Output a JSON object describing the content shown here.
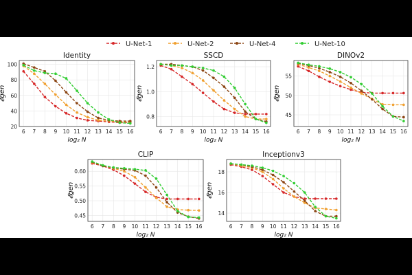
{
  "legend": [
    {
      "name": "U-Net-1",
      "color": "#d62728"
    },
    {
      "name": "U-Net-2",
      "color": "#f0a030"
    },
    {
      "name": "U-Net-4",
      "color": "#8b4513"
    },
    {
      "name": "U-Net-10",
      "color": "#32cd32"
    }
  ],
  "chart_data": [
    {
      "type": "line",
      "title": "Identity",
      "xlabel": "log₂ N",
      "ylabel": "𝓔gen",
      "x": [
        6,
        7,
        8,
        9,
        10,
        11,
        12,
        13,
        14,
        15,
        16
      ],
      "xlim": [
        5.6,
        16.4
      ],
      "ylim": [
        20,
        105
      ],
      "yticks": [
        "20",
        "40",
        "60",
        "80",
        "100"
      ],
      "ytick_values": [
        20,
        40,
        60,
        80,
        100
      ],
      "series": [
        {
          "name": "U-Net-1",
          "color": "#d62728",
          "values": [
            91,
            75,
            58,
            46,
            37,
            31,
            28,
            27,
            26,
            25,
            25
          ]
        },
        {
          "name": "U-Net-2",
          "color": "#f0a030",
          "values": [
            98,
            88,
            75,
            61,
            48,
            38,
            32,
            28,
            27,
            26,
            26
          ]
        },
        {
          "name": "U-Net-4",
          "color": "#8b4513",
          "values": [
            101,
            96,
            91,
            79,
            64,
            50,
            39,
            31,
            28,
            27,
            27
          ]
        },
        {
          "name": "U-Net-10",
          "color": "#32cd32",
          "values": [
            99,
            92,
            89,
            88,
            82,
            66,
            50,
            38,
            29,
            25,
            24
          ]
        }
      ]
    },
    {
      "type": "line",
      "title": "SSCD",
      "xlabel": "log₂ N",
      "ylabel": "𝓔gen",
      "x": [
        6,
        7,
        8,
        9,
        10,
        11,
        12,
        13,
        14,
        15,
        16
      ],
      "xlim": [
        5.6,
        16.4
      ],
      "ylim": [
        0.72,
        1.25
      ],
      "yticks": [
        "0.8",
        "1.0",
        "1.2"
      ],
      "ytick_values": [
        0.8,
        1.0,
        1.2
      ],
      "series": [
        {
          "name": "U-Net-1",
          "color": "#d62728",
          "values": [
            1.21,
            1.18,
            1.12,
            1.06,
            0.99,
            0.92,
            0.86,
            0.83,
            0.82,
            0.82,
            0.82
          ]
        },
        {
          "name": "U-Net-2",
          "color": "#f0a030",
          "values": [
            1.22,
            1.21,
            1.19,
            1.15,
            1.09,
            1.01,
            0.93,
            0.86,
            0.8,
            0.78,
            0.78
          ]
        },
        {
          "name": "U-Net-4",
          "color": "#8b4513",
          "values": [
            1.22,
            1.22,
            1.21,
            1.2,
            1.17,
            1.11,
            1.04,
            0.95,
            0.84,
            0.78,
            0.76
          ]
        },
        {
          "name": "U-Net-10",
          "color": "#32cd32",
          "values": [
            1.22,
            1.21,
            1.21,
            1.2,
            1.19,
            1.17,
            1.12,
            1.03,
            0.9,
            0.78,
            0.75
          ]
        }
      ]
    },
    {
      "type": "line",
      "title": "DINOv2",
      "xlabel": "log₂ N",
      "ylabel": "𝓔gen",
      "x": [
        6,
        7,
        8,
        9,
        10,
        11,
        12,
        13,
        14,
        15,
        16
      ],
      "xlim": [
        5.6,
        16.4
      ],
      "ylim": [
        42,
        59
      ],
      "yticks": [
        "45",
        "50",
        "55"
      ],
      "ytick_values": [
        45,
        50,
        55
      ],
      "series": [
        {
          "name": "U-Net-1",
          "color": "#d62728",
          "values": [
            57.5,
            56.3,
            54.8,
            53.5,
            52.4,
            51.5,
            50.8,
            50.6,
            50.6,
            50.6,
            50.6
          ]
        },
        {
          "name": "U-Net-2",
          "color": "#f0a030",
          "values": [
            58.0,
            57.2,
            56.3,
            55.0,
            53.6,
            52.0,
            50.5,
            49.1,
            47.7,
            47.6,
            47.6
          ]
        },
        {
          "name": "U-Net-4",
          "color": "#8b4513",
          "values": [
            58.3,
            57.7,
            57.0,
            56.0,
            54.8,
            53.2,
            51.2,
            49.0,
            46.5,
            44.6,
            44.4
          ]
        },
        {
          "name": "U-Net-10",
          "color": "#32cd32",
          "values": [
            58.4,
            57.9,
            57.5,
            56.9,
            56.0,
            54.7,
            52.9,
            50.5,
            47.2,
            44.6,
            43.4
          ]
        }
      ]
    },
    {
      "type": "line",
      "title": "CLIP",
      "xlabel": "log₂ N",
      "ylabel": "𝓔gen",
      "x": [
        6,
        7,
        8,
        9,
        10,
        11,
        12,
        13,
        14,
        15,
        16
      ],
      "xlim": [
        5.6,
        16.4
      ],
      "ylim": [
        0.43,
        0.64
      ],
      "yticks": [
        "0.45",
        "0.50",
        "0.55",
        "0.60"
      ],
      "ytick_values": [
        0.45,
        0.5,
        0.55,
        0.6
      ],
      "series": [
        {
          "name": "U-Net-1",
          "color": "#d62728",
          "values": [
            0.627,
            0.618,
            0.605,
            0.585,
            0.558,
            0.53,
            0.512,
            0.506,
            0.506,
            0.506,
            0.506
          ]
        },
        {
          "name": "U-Net-2",
          "color": "#f0a030",
          "values": [
            0.63,
            0.62,
            0.61,
            0.6,
            0.58,
            0.545,
            0.51,
            0.48,
            0.47,
            0.468,
            0.467
          ]
        },
        {
          "name": "U-Net-4",
          "color": "#8b4513",
          "values": [
            0.632,
            0.618,
            0.612,
            0.607,
            0.603,
            0.585,
            0.545,
            0.495,
            0.46,
            0.446,
            0.44
          ]
        },
        {
          "name": "U-Net-10",
          "color": "#32cd32",
          "values": [
            0.633,
            0.62,
            0.613,
            0.61,
            0.607,
            0.603,
            0.575,
            0.52,
            0.465,
            0.445,
            0.443
          ]
        }
      ]
    },
    {
      "type": "line",
      "title": "Inceptionv3",
      "xlabel": "log₂ N",
      "ylabel": "𝓔gen",
      "x": [
        6,
        7,
        8,
        9,
        10,
        11,
        12,
        13,
        14,
        15,
        16
      ],
      "xlim": [
        5.6,
        16.4
      ],
      "ylim": [
        13.2,
        19.2
      ],
      "yticks": [
        "14",
        "16",
        "18"
      ],
      "ytick_values": [
        14,
        16,
        18
      ],
      "series": [
        {
          "name": "U-Net-1",
          "color": "#d62728",
          "values": [
            18.7,
            18.5,
            18.2,
            17.6,
            16.8,
            16.0,
            15.6,
            15.4,
            15.4,
            15.4,
            15.4
          ]
        },
        {
          "name": "U-Net-2",
          "color": "#f0a030",
          "values": [
            18.8,
            18.6,
            18.4,
            18.0,
            17.3,
            16.4,
            15.6,
            15.0,
            14.5,
            14.4,
            14.3
          ]
        },
        {
          "name": "U-Net-4",
          "color": "#8b4513",
          "values": [
            18.8,
            18.7,
            18.5,
            18.2,
            17.7,
            17.0,
            16.1,
            15.2,
            14.2,
            13.7,
            13.7
          ]
        },
        {
          "name": "U-Net-10",
          "color": "#32cd32",
          "values": [
            18.8,
            18.7,
            18.6,
            18.4,
            18.1,
            17.6,
            16.9,
            16.0,
            14.6,
            13.7,
            13.5
          ]
        }
      ]
    }
  ]
}
